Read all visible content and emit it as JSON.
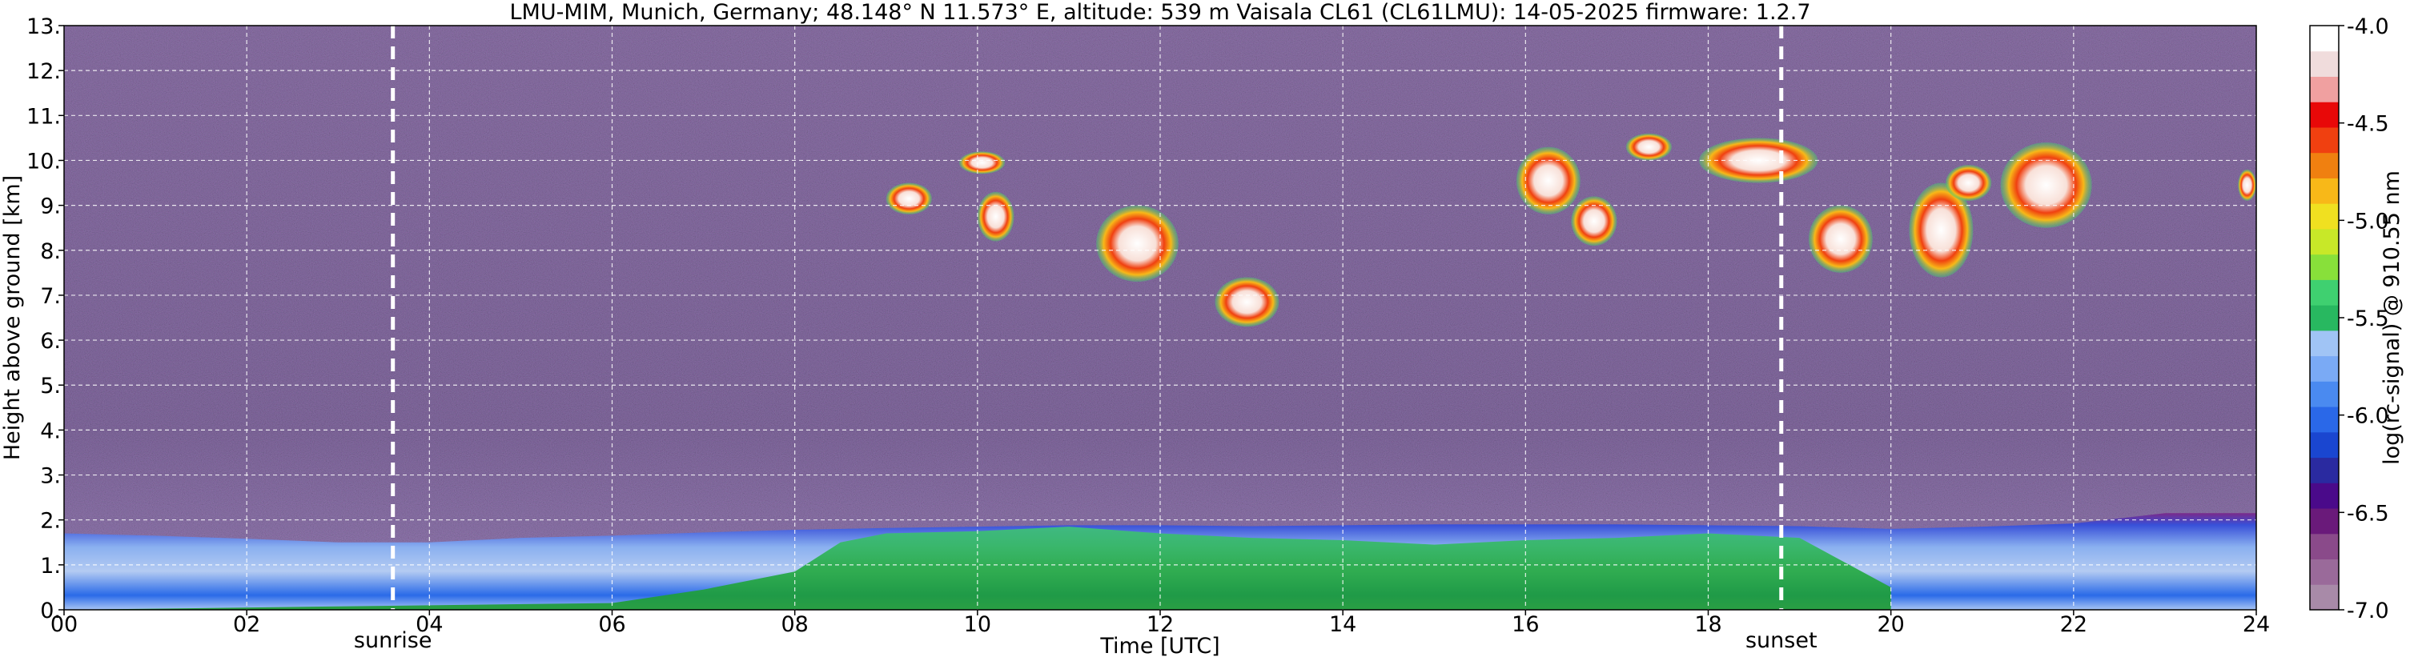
{
  "chart_data": {
    "type": "heatmap",
    "title": "LMU-MIM, Munich, Germany; 48.148° N 11.573° E, altitude: 539 m    Vaisala CL61 (CL61LMU): 14-05-2025    firmware: 1.2.7",
    "xlabel": "Time [UTC]",
    "ylabel": "Height above ground [km]",
    "xlim": [
      0,
      24
    ],
    "ylim": [
      0,
      13
    ],
    "x_ticks": [
      0,
      2,
      4,
      6,
      8,
      10,
      12,
      14,
      16,
      18,
      20,
      22,
      24
    ],
    "x_tick_labels": [
      "00",
      "02",
      "04",
      "06",
      "08",
      "10",
      "12",
      "14",
      "16",
      "18",
      "20",
      "22",
      "24"
    ],
    "y_ticks": [
      0,
      1,
      2,
      3,
      4,
      5,
      6,
      7,
      8,
      9,
      10,
      11,
      12,
      13
    ],
    "y_tick_labels": [
      "0.",
      "1.",
      "2.",
      "3.",
      "4.",
      "5.",
      "6.",
      "7.",
      "8.",
      "9.",
      "10.",
      "11.",
      "12.",
      "13."
    ],
    "grid": true,
    "colorbar": {
      "label": "log(rc-signal) @ 910.55 nm",
      "range": [
        -7.0,
        -4.0
      ],
      "ticks": [
        -4.0,
        -4.5,
        -5.0,
        -5.5,
        -6.0,
        -6.5,
        -7.0
      ],
      "tick_labels": [
        "-4.0",
        "-4.5",
        "-5.0",
        "-5.5",
        "-6.0",
        "-6.5",
        "-7.0"
      ],
      "colors": [
        "#a88aa8",
        "#9a6a9a",
        "#8a4a8a",
        "#6a1a7a",
        "#4a0a8a",
        "#2a2aa0",
        "#1a46d0",
        "#2a68e8",
        "#4a8af0",
        "#7aaaf5",
        "#a0c4f5",
        "#28b860",
        "#3fd070",
        "#88e03a",
        "#c8e828",
        "#f0e020",
        "#f8b818",
        "#f08010",
        "#f04010",
        "#e80808",
        "#f0a0a0",
        "#f0dcdc",
        "#ffffff"
      ]
    },
    "markers": [
      {
        "label": "sunrise",
        "time": 3.6
      },
      {
        "label": "sunset",
        "time": 18.8
      }
    ],
    "boundary_layer_top_km": [
      [
        0,
        1.7
      ],
      [
        1,
        1.65
      ],
      [
        2,
        1.58
      ],
      [
        3,
        1.5
      ],
      [
        4,
        1.5
      ],
      [
        5,
        1.6
      ],
      [
        6,
        1.65
      ],
      [
        7,
        1.72
      ],
      [
        8,
        1.78
      ],
      [
        9,
        1.82
      ],
      [
        10,
        1.85
      ],
      [
        11,
        1.88
      ],
      [
        12,
        1.88
      ],
      [
        13,
        1.86
      ],
      [
        14,
        1.88
      ],
      [
        15,
        1.9
      ],
      [
        16,
        1.9
      ],
      [
        17,
        1.9
      ],
      [
        18,
        1.88
      ],
      [
        19,
        1.86
      ],
      [
        20,
        1.8
      ],
      [
        21,
        1.85
      ],
      [
        22,
        1.92
      ],
      [
        23,
        2.15
      ],
      [
        24,
        2.15
      ]
    ],
    "mixed_layer_top_km": [
      [
        0,
        0.0
      ],
      [
        6,
        0.15
      ],
      [
        7,
        0.45
      ],
      [
        8,
        0.85
      ],
      [
        8.5,
        1.5
      ],
      [
        9,
        1.7
      ],
      [
        10,
        1.75
      ],
      [
        11,
        1.85
      ],
      [
        12,
        1.7
      ],
      [
        13,
        1.6
      ],
      [
        14,
        1.55
      ],
      [
        15,
        1.45
      ],
      [
        16,
        1.55
      ],
      [
        17,
        1.6
      ],
      [
        18,
        1.7
      ],
      [
        19,
        1.6
      ],
      [
        20,
        0.5
      ]
    ],
    "cloud_layers": [
      {
        "time_start": 9.0,
        "time_end": 9.5,
        "base_km": 8.8,
        "top_km": 9.5
      },
      {
        "time_start": 9.8,
        "time_end": 10.3,
        "base_km": 9.7,
        "top_km": 10.2
      },
      {
        "time_start": 10.0,
        "time_end": 10.4,
        "base_km": 8.2,
        "top_km": 9.3
      },
      {
        "time_start": 11.3,
        "time_end": 12.2,
        "base_km": 7.3,
        "top_km": 9.0
      },
      {
        "time_start": 12.6,
        "time_end": 13.3,
        "base_km": 6.3,
        "top_km": 7.4
      },
      {
        "time_start": 15.9,
        "time_end": 16.6,
        "base_km": 8.8,
        "top_km": 10.3
      },
      {
        "time_start": 16.5,
        "time_end": 17.0,
        "base_km": 8.1,
        "top_km": 9.2
      },
      {
        "time_start": 17.1,
        "time_end": 17.6,
        "base_km": 10.0,
        "top_km": 10.6
      },
      {
        "time_start": 17.9,
        "time_end": 19.2,
        "base_km": 9.5,
        "top_km": 10.5
      },
      {
        "time_start": 19.1,
        "time_end": 19.8,
        "base_km": 7.5,
        "top_km": 9.0
      },
      {
        "time_start": 20.2,
        "time_end": 20.9,
        "base_km": 7.4,
        "top_km": 9.5
      },
      {
        "time_start": 20.6,
        "time_end": 21.1,
        "base_km": 9.1,
        "top_km": 9.9
      },
      {
        "time_start": 21.2,
        "time_end": 22.2,
        "base_km": 8.5,
        "top_km": 10.4
      },
      {
        "time_start": 23.8,
        "time_end": 24.0,
        "base_km": 9.1,
        "top_km": 9.8
      }
    ]
  }
}
